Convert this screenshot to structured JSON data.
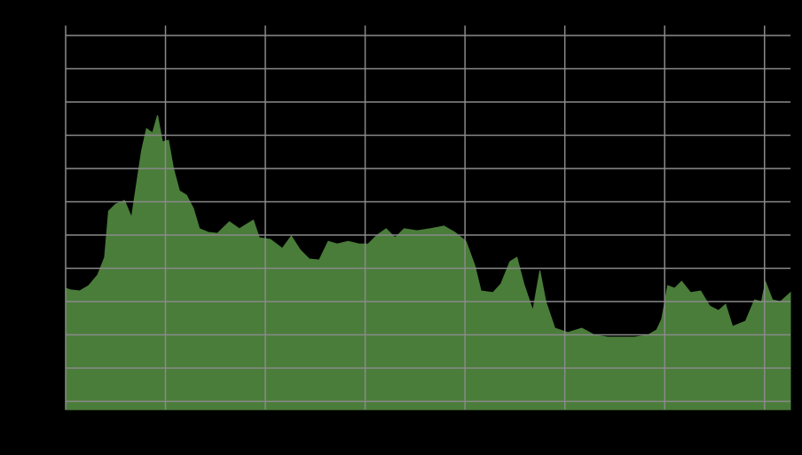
{
  "chart_data": {
    "type": "area",
    "color": "#4a7d3a",
    "grid": true,
    "x": [
      0,
      0.05,
      0.14,
      0.23,
      0.32,
      0.39,
      0.43,
      0.5,
      0.59,
      0.66,
      0.72,
      0.76,
      0.81,
      0.87,
      0.92,
      0.97,
      1.03,
      1.08,
      1.14,
      1.21,
      1.28,
      1.34,
      1.43,
      1.52,
      1.64,
      1.74,
      1.88,
      1.94,
      2.05,
      2.17,
      2.26,
      2.35,
      2.44,
      2.54,
      2.63,
      2.72,
      2.83,
      2.94,
      3.03,
      3.12,
      3.21,
      3.3,
      3.39,
      3.52,
      3.65,
      3.79,
      3.9,
      4.01,
      4.1,
      4.16,
      4.28,
      4.36,
      4.45,
      4.52,
      4.59,
      4.68,
      4.75,
      4.81,
      4.9,
      5.03,
      5.17,
      5.3,
      5.43,
      5.56,
      5.7,
      5.83,
      5.92,
      5.97,
      6.03,
      6.1,
      6.17,
      6.26,
      6.36,
      6.45,
      6.54,
      6.61,
      6.68,
      6.81,
      6.9,
      6.97,
      7.01,
      7.08,
      7.16,
      7.26
    ],
    "values": [
      3.4,
      3.35,
      3.32,
      3.48,
      3.8,
      4.33,
      5.72,
      5.93,
      6.04,
      5.53,
      6.73,
      7.53,
      8.2,
      8.07,
      8.6,
      7.8,
      7.85,
      7.0,
      6.33,
      6.2,
      5.8,
      5.19,
      5.08,
      5.05,
      5.4,
      5.19,
      5.45,
      4.92,
      4.87,
      4.6,
      4.97,
      4.55,
      4.28,
      4.25,
      4.81,
      4.73,
      4.81,
      4.73,
      4.73,
      5.0,
      5.19,
      4.92,
      5.19,
      5.13,
      5.19,
      5.27,
      5.08,
      4.81,
      4.07,
      3.32,
      3.27,
      3.53,
      4.2,
      4.33,
      3.53,
      2.73,
      3.93,
      3.0,
      2.2,
      2.07,
      2.2,
      1.99,
      1.93,
      1.93,
      1.93,
      1.99,
      2.15,
      2.47,
      3.48,
      3.4,
      3.61,
      3.27,
      3.32,
      2.87,
      2.73,
      2.92,
      2.25,
      2.41,
      3.05,
      3.0,
      3.59,
      3.05,
      3.0,
      3.27
    ],
    "xlim": [
      0,
      7.26
    ],
    "ylim": [
      -0.25,
      11.3
    ],
    "xticks": [
      0,
      1,
      2,
      3,
      4,
      5,
      6,
      7
    ],
    "yticks": [
      0,
      1,
      2,
      3,
      4,
      5,
      6,
      7,
      8,
      9,
      10,
      11
    ]
  }
}
